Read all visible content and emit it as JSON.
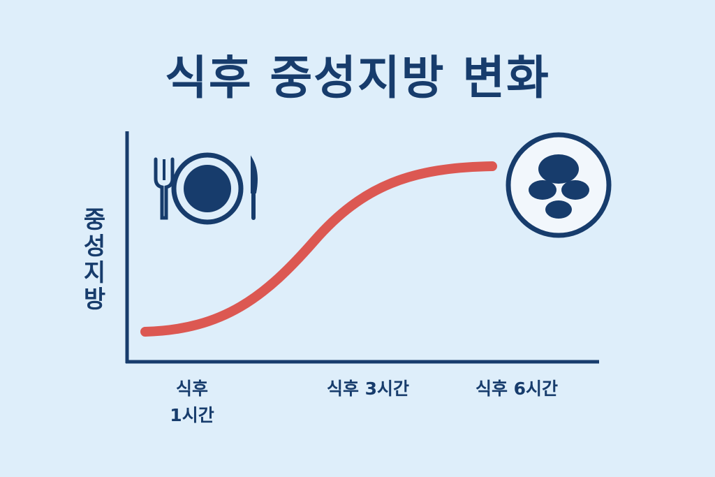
{
  "title": "식후 중성지방 변화",
  "y_axis_label": "중성지방",
  "x_labels": [
    "식후\n1시간",
    "식후 3시간",
    "식후 6시간"
  ]
}
